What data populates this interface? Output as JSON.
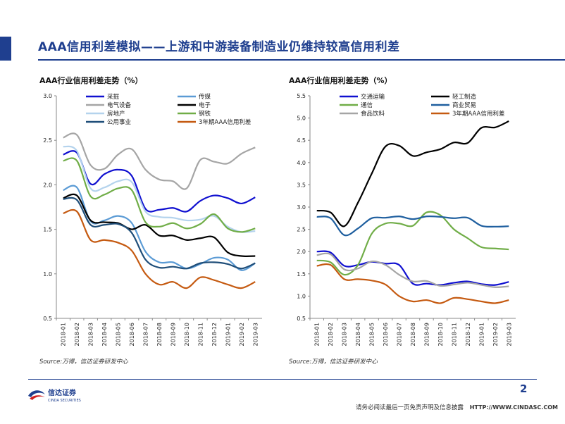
{
  "header": {
    "title": "AAA信用利差模拟——上游和中游装备制造业仍维持较高信用利差"
  },
  "logo": {
    "name": "信达证券",
    "sub": "CINDA SECURITIES"
  },
  "footer": {
    "page_number": "2",
    "disclaimer": "请务必阅读最后一页免责声明及信息披露",
    "url": "HTTP://WWW.CINDASC.COM"
  },
  "chart_data": [
    {
      "type": "line",
      "title": "AAA行业信用利差走势（%）",
      "source": "Source:万得，信达证券研发中心",
      "ylim": [
        0.5,
        3.0
      ],
      "yticks": [
        "3.0",
        "2.5",
        "2.0",
        "1.5",
        "1.0",
        "0.5"
      ],
      "categories": [
        "2018-01",
        "2018-02",
        "2018-03",
        "2018-04",
        "2018-05",
        "2018-06",
        "2018-07",
        "2018-08",
        "2018-09",
        "2018-10",
        "2018-11",
        "2018-12",
        "2019-01",
        "2019-02",
        "2019-03"
      ],
      "legend_position": "top",
      "series": [
        {
          "name": "采掘",
          "color": "#1010d0",
          "values": [
            2.34,
            2.36,
            2.01,
            2.12,
            2.17,
            2.1,
            1.73,
            1.72,
            1.74,
            1.7,
            1.82,
            1.88,
            1.85,
            1.79,
            1.86
          ]
        },
        {
          "name": "传媒",
          "color": "#5b9bd5",
          "values": [
            1.94,
            1.97,
            1.59,
            1.6,
            1.65,
            1.57,
            1.25,
            1.13,
            1.13,
            1.06,
            1.11,
            1.18,
            1.16,
            1.04,
            1.12
          ]
        },
        {
          "name": "电气设备",
          "color": "#a5a5a5",
          "values": [
            2.53,
            2.56,
            2.22,
            2.18,
            2.34,
            2.4,
            2.17,
            2.06,
            2.04,
            1.96,
            2.28,
            2.26,
            2.24,
            2.35,
            2.42
          ]
        },
        {
          "name": "电子",
          "color": "#000000",
          "values": [
            1.85,
            1.88,
            1.6,
            1.58,
            1.57,
            1.5,
            1.55,
            1.43,
            1.43,
            1.38,
            1.4,
            1.41,
            1.24,
            1.2,
            1.2
          ]
        },
        {
          "name": "房地产",
          "color": "#b4d3ed",
          "values": [
            2.43,
            2.38,
            1.96,
            1.97,
            2.04,
            2.03,
            1.7,
            1.64,
            1.63,
            1.6,
            1.61,
            1.65,
            1.53,
            1.47,
            1.48
          ]
        },
        {
          "name": "钢铁",
          "color": "#70ad47",
          "values": [
            2.27,
            2.27,
            1.87,
            1.89,
            1.96,
            1.94,
            1.58,
            1.53,
            1.57,
            1.51,
            1.56,
            1.67,
            1.51,
            1.47,
            1.51
          ]
        },
        {
          "name": "公用事业",
          "color": "#1f4e79",
          "values": [
            1.84,
            1.83,
            1.55,
            1.55,
            1.56,
            1.46,
            1.16,
            1.07,
            1.08,
            1.06,
            1.12,
            1.13,
            1.11,
            1.06,
            1.12
          ]
        },
        {
          "name": "3年期AAA信用利差",
          "color": "#c55a11",
          "values": [
            1.68,
            1.7,
            1.38,
            1.38,
            1.35,
            1.26,
            1.0,
            0.88,
            0.91,
            0.84,
            0.96,
            0.93,
            0.88,
            0.84,
            0.91
          ]
        }
      ]
    },
    {
      "type": "line",
      "title": "AAA行业信用利差走势（%）",
      "source": "Source:万得，信达证券研发中心",
      "ylim": [
        0.5,
        5.5
      ],
      "yticks": [
        "5.5",
        "5.0",
        "4.5",
        "4.0",
        "3.5",
        "3.0",
        "2.5",
        "2.0",
        "1.5",
        "1.0",
        "0.5"
      ],
      "categories": [
        "2018-01",
        "2018-02",
        "2018-03",
        "2018-04",
        "2018-05",
        "2018-06",
        "2018-07",
        "2018-08",
        "2018-09",
        "2018-10",
        "2018-11",
        "2018-12",
        "2019-01",
        "2019-02",
        "2019-03"
      ],
      "legend_position": "top",
      "series": [
        {
          "name": "交通运输",
          "color": "#1010d0",
          "values": [
            2.0,
            1.98,
            1.68,
            1.7,
            1.77,
            1.73,
            1.7,
            1.28,
            1.28,
            1.25,
            1.3,
            1.33,
            1.27,
            1.25,
            1.32
          ]
        },
        {
          "name": "轻工制造",
          "color": "#000000",
          "values": [
            2.92,
            2.88,
            2.57,
            3.1,
            3.75,
            4.36,
            4.38,
            4.15,
            4.23,
            4.3,
            4.45,
            4.44,
            4.78,
            4.79,
            4.93
          ]
        },
        {
          "name": "通信",
          "color": "#70ad47",
          "values": [
            1.8,
            1.76,
            1.48,
            1.7,
            2.4,
            2.63,
            2.63,
            2.58,
            2.88,
            2.82,
            2.5,
            2.3,
            2.1,
            2.07,
            2.05
          ]
        },
        {
          "name": "商业贸易",
          "color": "#1f5f9f",
          "values": [
            2.78,
            2.75,
            2.37,
            2.52,
            2.75,
            2.76,
            2.79,
            2.73,
            2.79,
            2.78,
            2.75,
            2.76,
            2.58,
            2.56,
            2.57
          ]
        },
        {
          "name": "食品饮料",
          "color": "#a5a5a5",
          "values": [
            1.92,
            1.94,
            1.6,
            1.62,
            1.78,
            1.7,
            1.48,
            1.33,
            1.34,
            1.23,
            1.26,
            1.3,
            1.25,
            1.2,
            1.22
          ]
        },
        {
          "name": "3年期AAA信用利差",
          "color": "#c55a11",
          "values": [
            1.68,
            1.7,
            1.38,
            1.38,
            1.35,
            1.26,
            1.0,
            0.88,
            0.91,
            0.84,
            0.96,
            0.93,
            0.88,
            0.84,
            0.91
          ]
        }
      ]
    }
  ]
}
